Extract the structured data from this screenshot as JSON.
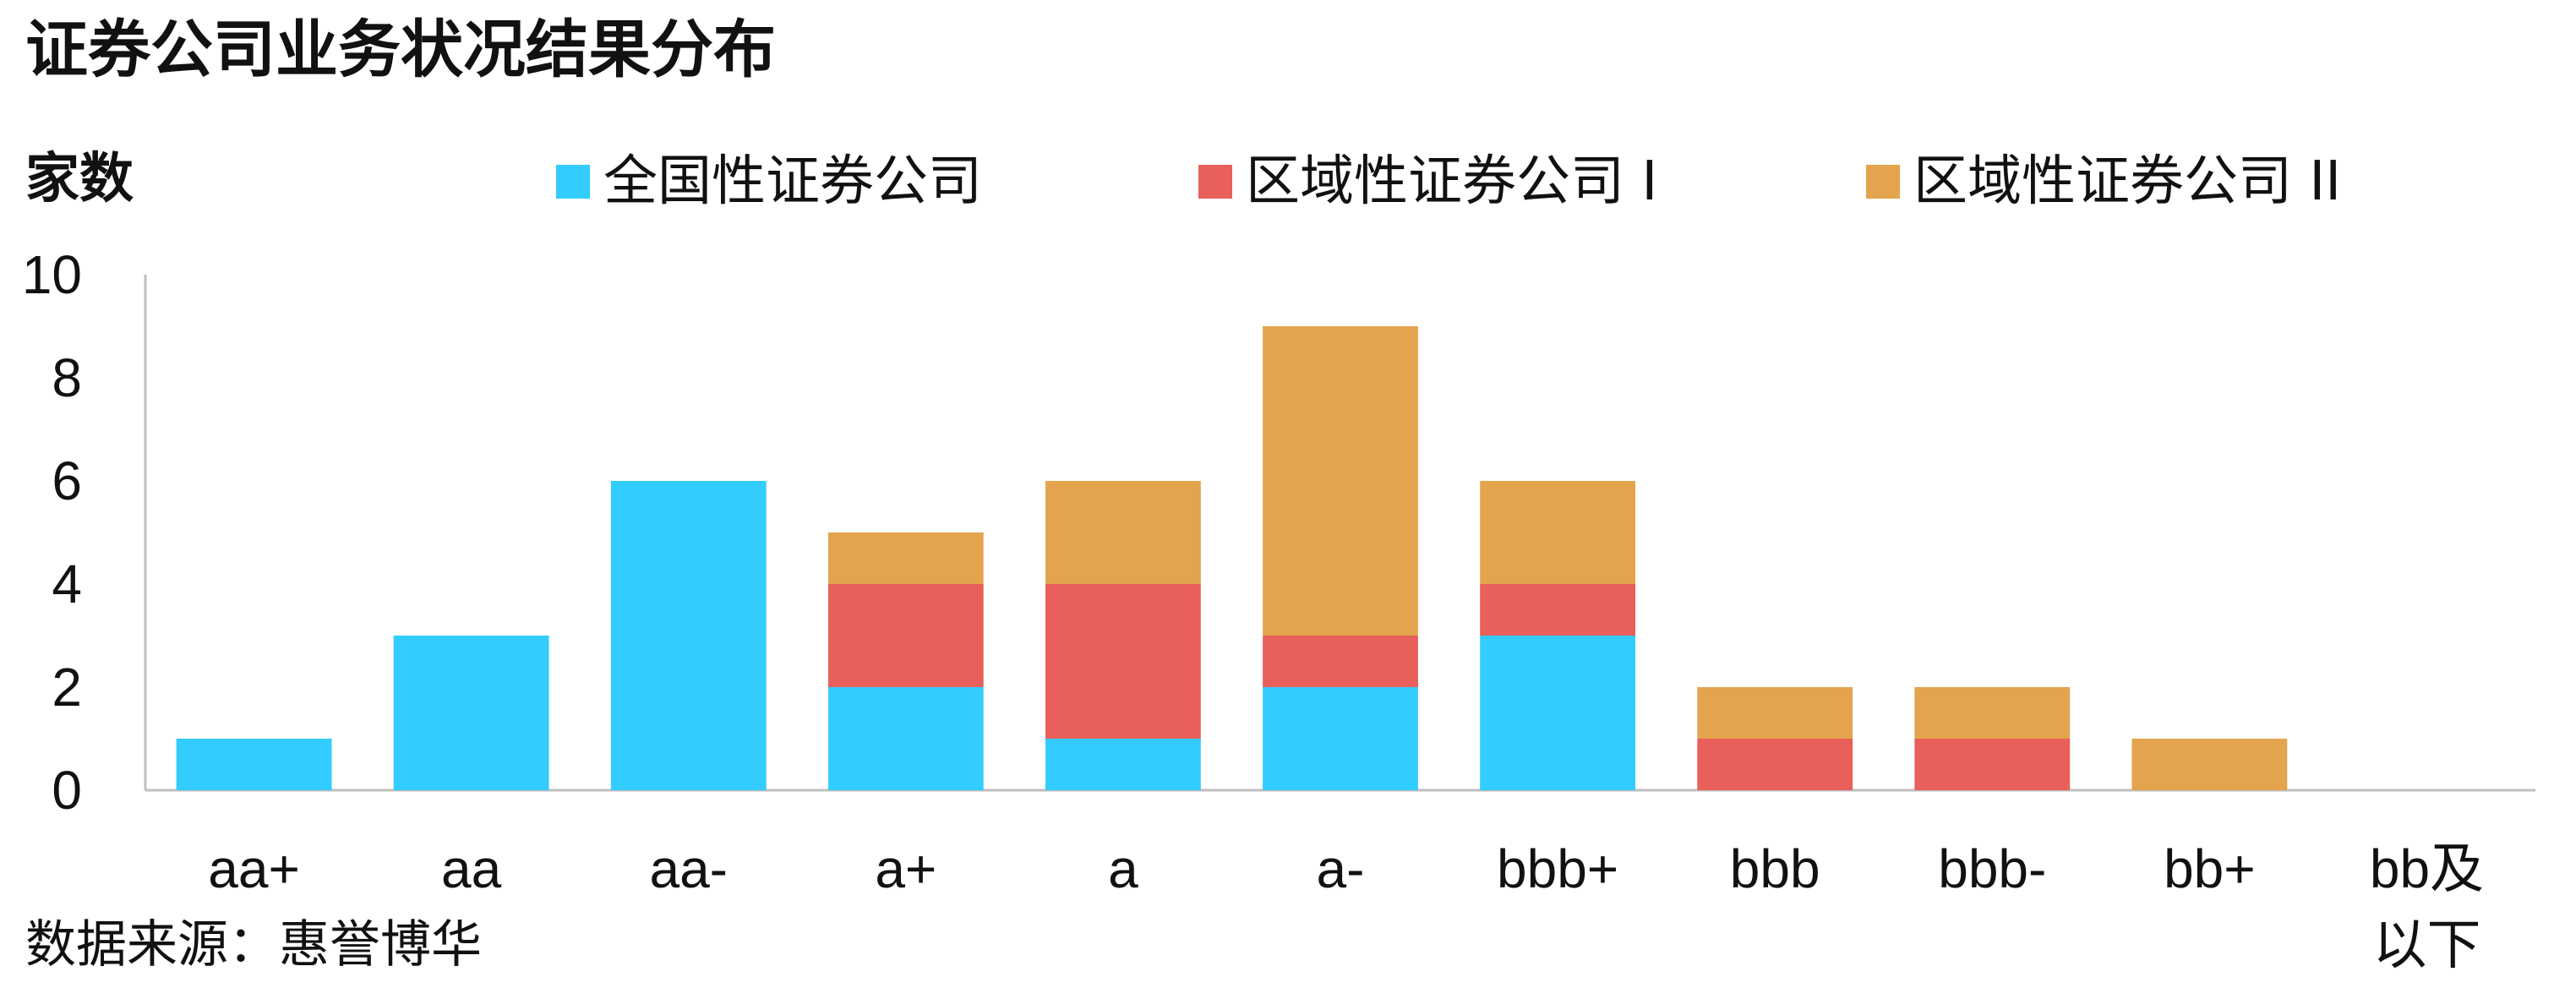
{
  "title": "证券公司业务状况结果分布",
  "y_unit": "家数",
  "source": "数据来源：惠誉博华",
  "chart_data": {
    "type": "bar",
    "stacked": true,
    "categories": [
      "aa+",
      "aa",
      "aa-",
      "a+",
      "a",
      "a-",
      "bbb+",
      "bbb",
      "bbb-",
      "bb+",
      "bb及以下"
    ],
    "series": [
      {
        "name": "全国性证券公司",
        "color": "#33CCFF",
        "values": [
          1,
          3,
          6,
          2,
          1,
          2,
          3,
          0,
          0,
          0,
          0
        ]
      },
      {
        "name": "区域性证券公司 I",
        "color": "#E95F5A",
        "values": [
          0,
          0,
          0,
          2,
          3,
          1,
          1,
          1,
          1,
          0,
          0
        ]
      },
      {
        "name": "区域性证券公司 II",
        "color": "#E3A44D",
        "values": [
          0,
          0,
          0,
          1,
          2,
          6,
          2,
          1,
          1,
          1,
          0
        ]
      }
    ],
    "ylim": [
      0,
      10
    ],
    "yticks": [
      0,
      2,
      4,
      6,
      8,
      10
    ],
    "ylabel": "家数",
    "xlabel": "",
    "legend_position": "top",
    "grid": false
  }
}
